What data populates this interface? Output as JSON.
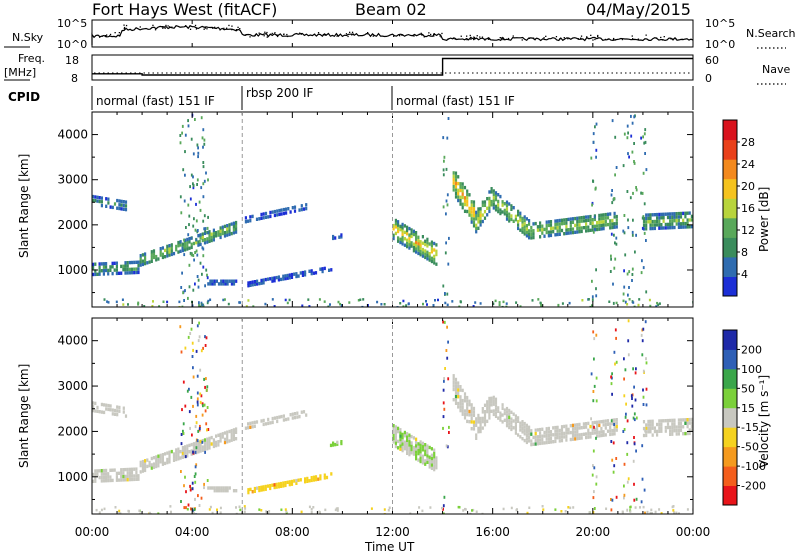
{
  "header": {
    "station": "Fort Hays West (fitACF)",
    "beam": "Beam 02",
    "date": "04/May/2015"
  },
  "noise_panel": {
    "left_label": "N.Sky",
    "left_ticks": [
      "10^5",
      "10^0"
    ],
    "right_ticks": [
      "10^5",
      "10^0"
    ],
    "right_label": "N.Search"
  },
  "freq_panel": {
    "left_label_1": "Freq.",
    "left_label_2": "[MHz]",
    "left_ticks": [
      "18",
      "8"
    ],
    "right_ticks": [
      "60",
      "0"
    ],
    "right_label": "Nave",
    "freq_mhz": [
      {
        "t": 0.0,
        "v": 10.5
      },
      {
        "t": 2.0,
        "v": 10.5
      },
      {
        "t": 2.0,
        "v": 10.0
      },
      {
        "t": 14.0,
        "v": 10.0
      },
      {
        "t": 14.0,
        "v": 16.6
      },
      {
        "t": 24.0,
        "v": 16.6
      }
    ]
  },
  "cpid": {
    "label": "CPID",
    "segments": [
      {
        "start": 0.0,
        "end": 6.0,
        "name": "normal (fast) 151 IF"
      },
      {
        "start": 6.0,
        "end": 12.0,
        "name": "rbsp 200 IF"
      },
      {
        "start": 12.0,
        "end": 24.0,
        "name": "normal (fast) 151 IF"
      }
    ]
  },
  "axes": {
    "xlabel": "Time UT",
    "ylabel": "Slant Range [km]",
    "x_ticks": [
      "00:00",
      "04:00",
      "08:00",
      "12:00",
      "16:00",
      "20:00",
      "00:00"
    ],
    "y_ticks": [
      "1000",
      "2000",
      "3000",
      "4000"
    ]
  },
  "power_colorbar": {
    "label": "Power [dB]",
    "ticks": [
      "28",
      "24",
      "20",
      "16",
      "12",
      "8",
      "4"
    ]
  },
  "velocity_colorbar": {
    "label": "Velocity [m s⁻¹]",
    "ticks": [
      "200",
      "100",
      "50",
      "15",
      "-15",
      "-50",
      "-100",
      "-200"
    ]
  },
  "chart_data": [
    {
      "type": "heatmap",
      "title": "Power [dB]",
      "xlabel": "Time UT",
      "ylabel": "Slant Range [km]",
      "xlim": [
        0,
        24
      ],
      "ylim": [
        180,
        4500
      ],
      "color_range": [
        0,
        30
      ],
      "colors": [
        "#1c2fd6",
        "#2f6cb0",
        "#3a8c5c",
        "#59a85a",
        "#b8d43c",
        "#f5c31e",
        "#f3891d",
        "#e9401a",
        "#d9121d"
      ],
      "echo_bands": [
        {
          "t0": 0.0,
          "t1": 1.9,
          "r0": 1050,
          "r1": 1100,
          "width_km": 300,
          "power_db": 10
        },
        {
          "t0": 0.0,
          "t1": 1.4,
          "r0": 2580,
          "r1": 2450,
          "width_km": 250,
          "power_db": 8
        },
        {
          "t0": 1.9,
          "t1": 5.8,
          "r0": 1250,
          "r1": 2000,
          "width_km": 280,
          "power_db": 14
        },
        {
          "t0": 4.6,
          "t1": 5.8,
          "r0": 760,
          "r1": 760,
          "width_km": 120,
          "power_db": 6
        },
        {
          "t0": 6.1,
          "t1": 8.6,
          "r0": 2150,
          "r1": 2450,
          "width_km": 170,
          "power_db": 6
        },
        {
          "t0": 6.2,
          "t1": 9.6,
          "r0": 720,
          "r1": 1080,
          "width_km": 120,
          "power_db": 5
        },
        {
          "t0": 9.5,
          "t1": 10.0,
          "r0": 1750,
          "r1": 1800,
          "width_km": 80,
          "power_db": 5
        },
        {
          "t0": 12.0,
          "t1": 13.8,
          "r0": 1950,
          "r1": 1350,
          "width_km": 500,
          "power_db": 18
        },
        {
          "t0": 14.4,
          "t1": 15.3,
          "r0": 3000,
          "r1": 2200,
          "width_km": 600,
          "power_db": 20
        },
        {
          "t0": 15.3,
          "t1": 16.0,
          "r0": 2100,
          "r1": 2700,
          "width_km": 500,
          "power_db": 16
        },
        {
          "t0": 16.0,
          "t1": 17.5,
          "r0": 2600,
          "r1": 1900,
          "width_km": 450,
          "power_db": 16
        },
        {
          "t0": 17.5,
          "t1": 21.0,
          "r0": 1900,
          "r1": 2150,
          "width_km": 380,
          "power_db": 14
        },
        {
          "t0": 22.0,
          "t1": 24.0,
          "r0": 2100,
          "r1": 2150,
          "width_km": 380,
          "power_db": 12
        }
      ]
    },
    {
      "type": "heatmap",
      "title": "Velocity [m s⁻¹]",
      "xlabel": "Time UT",
      "ylabel": "Slant Range [km]",
      "xlim": [
        0,
        24
      ],
      "ylim": [
        180,
        4500
      ],
      "color_range": [
        -200,
        200
      ],
      "colors": [
        "#e8141a",
        "#f45e1c",
        "#f59a1e",
        "#f5d21f",
        "#c8c8c0",
        "#7bd03a",
        "#3aa64a",
        "#2e5fb6",
        "#1f2aa8"
      ],
      "echo_bands": [
        {
          "t0": 0.0,
          "t1": 1.9,
          "r0": 1050,
          "r1": 1100,
          "width_km": 300,
          "velocity_ms": 0
        },
        {
          "t0": 0.0,
          "t1": 1.4,
          "r0": 2580,
          "r1": 2450,
          "width_km": 250,
          "velocity_ms": 0
        },
        {
          "t0": 1.9,
          "t1": 5.8,
          "r0": 1250,
          "r1": 2000,
          "width_km": 280,
          "velocity_ms": 0
        },
        {
          "t0": 4.6,
          "t1": 5.8,
          "r0": 760,
          "r1": 760,
          "width_km": 120,
          "velocity_ms": 0
        },
        {
          "t0": 6.1,
          "t1": 8.6,
          "r0": 2150,
          "r1": 2450,
          "width_km": 170,
          "velocity_ms": 0
        },
        {
          "t0": 6.2,
          "t1": 9.6,
          "r0": 720,
          "r1": 1080,
          "width_km": 120,
          "velocity_ms": -40
        },
        {
          "t0": 9.5,
          "t1": 10.0,
          "r0": 1750,
          "r1": 1800,
          "width_km": 80,
          "velocity_ms": 30
        },
        {
          "t0": 12.0,
          "t1": 13.8,
          "r0": 1950,
          "r1": 1350,
          "width_km": 500,
          "velocity_ms": 20
        },
        {
          "t0": 14.4,
          "t1": 15.3,
          "r0": 3000,
          "r1": 2200,
          "width_km": 600,
          "velocity_ms": 0
        },
        {
          "t0": 15.3,
          "t1": 16.0,
          "r0": 2100,
          "r1": 2700,
          "width_km": 500,
          "velocity_ms": 0
        },
        {
          "t0": 16.0,
          "t1": 17.5,
          "r0": 2600,
          "r1": 1900,
          "width_km": 450,
          "velocity_ms": 0
        },
        {
          "t0": 17.5,
          "t1": 21.0,
          "r0": 1900,
          "r1": 2150,
          "width_km": 380,
          "velocity_ms": 0
        },
        {
          "t0": 22.0,
          "t1": 24.0,
          "r0": 2100,
          "r1": 2150,
          "width_km": 380,
          "velocity_ms": 0
        }
      ]
    }
  ]
}
